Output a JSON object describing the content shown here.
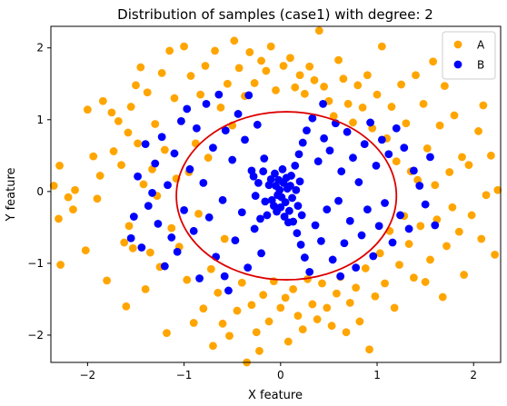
{
  "chart_data": {
    "type": "scatter",
    "title": "Distribution of samples (case1) with degree: 2",
    "xlabel": "X feature",
    "ylabel": "Y feature",
    "xlim": [
      -2.38,
      2.28
    ],
    "ylim": [
      -2.38,
      2.3
    ],
    "xticks": [
      -2,
      -1,
      0,
      1,
      2
    ],
    "xtick_labels": [
      "−2",
      "−1",
      "0",
      "1",
      "2"
    ],
    "yticks": [
      -2,
      -1,
      0,
      1,
      2
    ],
    "ytick_labels": [
      "−2",
      "−1",
      "0",
      "1",
      "2"
    ],
    "grid": false,
    "legend": "top-right",
    "series": [
      {
        "name": "A",
        "color": "#ffa500",
        "points": [
          [
            -2.35,
            0.08
          ],
          [
            -2.3,
            -0.38
          ],
          [
            -2.29,
            0.36
          ],
          [
            -2.28,
            -1.02
          ],
          [
            -2.2,
            -0.08
          ],
          [
            -2.15,
            -0.25
          ],
          [
            -2.13,
            0.02
          ],
          [
            -2.02,
            -0.82
          ],
          [
            -2.0,
            1.14
          ],
          [
            -1.94,
            0.49
          ],
          [
            -1.9,
            -0.1
          ],
          [
            -1.87,
            0.22
          ],
          [
            -1.84,
            1.26
          ],
          [
            -1.8,
            -1.24
          ],
          [
            -1.75,
            1.1
          ],
          [
            -1.73,
            0.56
          ],
          [
            -1.68,
            0.98
          ],
          [
            -1.65,
            0.37
          ],
          [
            -1.62,
            -0.71
          ],
          [
            -1.6,
            -1.6
          ],
          [
            -1.58,
            0.82
          ],
          [
            -1.57,
            -0.48
          ],
          [
            -1.55,
            1.18
          ],
          [
            -1.53,
            -0.79
          ],
          [
            -1.5,
            1.48
          ],
          [
            -1.48,
            0.67
          ],
          [
            -1.45,
            1.73
          ],
          [
            -1.42,
            0.1
          ],
          [
            -1.4,
            -1.36
          ],
          [
            -1.38,
            1.38
          ],
          [
            -1.35,
            -0.85
          ],
          [
            -1.33,
            0.31
          ],
          [
            -1.3,
            0.94
          ],
          [
            -1.28,
            -0.06
          ],
          [
            -1.25,
            -1.05
          ],
          [
            -1.23,
            1.65
          ],
          [
            -1.2,
            0.58
          ],
          [
            -1.18,
            -1.97
          ],
          [
            -1.15,
            1.96
          ],
          [
            -1.13,
            -0.51
          ],
          [
            -1.1,
            1.3
          ],
          [
            -1.08,
            0.18
          ],
          [
            -1.05,
            -0.77
          ],
          [
            -1.03,
            0.98
          ],
          [
            -1.0,
            2.02
          ],
          [
            -0.97,
            -1.23
          ],
          [
            -0.95,
            0.27
          ],
          [
            -0.93,
            1.61
          ],
          [
            -0.9,
            -1.83
          ],
          [
            -0.88,
            0.67
          ],
          [
            -0.85,
            -0.31
          ],
          [
            -0.83,
            1.35
          ],
          [
            -0.8,
            -1.63
          ],
          [
            -0.78,
            1.75
          ],
          [
            -0.75,
            0.47
          ],
          [
            -0.72,
            -1.08
          ],
          [
            -0.7,
            -2.15
          ],
          [
            -0.68,
            1.96
          ],
          [
            -0.65,
            -1.41
          ],
          [
            -0.62,
            1.17
          ],
          [
            -0.6,
            -1.84
          ],
          [
            -0.58,
            -0.66
          ],
          [
            -0.55,
            1.5
          ],
          [
            -0.53,
            -2.01
          ],
          [
            -0.5,
            0.92
          ],
          [
            -0.48,
            2.1
          ],
          [
            -0.45,
            -1.66
          ],
          [
            -0.43,
            1.72
          ],
          [
            -0.4,
            -1.27
          ],
          [
            -0.37,
            1.33
          ],
          [
            -0.35,
            -2.38
          ],
          [
            -0.32,
            1.94
          ],
          [
            -0.3,
            -1.58
          ],
          [
            -0.27,
            1.51
          ],
          [
            -0.25,
            -1.96
          ],
          [
            -0.22,
            -2.22
          ],
          [
            -0.2,
            1.82
          ],
          [
            -0.18,
            -1.44
          ],
          [
            -0.15,
            1.68
          ],
          [
            -0.12,
            -1.81
          ],
          [
            -0.1,
            2.02
          ],
          [
            -0.07,
            -1.25
          ],
          [
            -0.05,
            1.41
          ],
          [
            0.0,
            -1.62
          ],
          [
            0.03,
            1.75
          ],
          [
            0.05,
            -1.48
          ],
          [
            0.08,
            -2.09
          ],
          [
            0.1,
            1.86
          ],
          [
            0.13,
            -1.36
          ],
          [
            0.15,
            1.45
          ],
          [
            0.18,
            -1.73
          ],
          [
            0.2,
            1.62
          ],
          [
            0.23,
            -1.92
          ],
          [
            0.25,
            1.36
          ],
          [
            0.28,
            -1.22
          ],
          [
            0.3,
            1.74
          ],
          [
            0.33,
            -1.57
          ],
          [
            0.35,
            1.55
          ],
          [
            0.38,
            -1.78
          ],
          [
            0.4,
            2.24
          ],
          [
            0.43,
            -1.28
          ],
          [
            0.45,
            1.46
          ],
          [
            0.48,
            -1.62
          ],
          [
            0.5,
            1.26
          ],
          [
            0.53,
            -1.87
          ],
          [
            0.55,
            1.05
          ],
          [
            0.58,
            -1.42
          ],
          [
            0.6,
            1.83
          ],
          [
            0.62,
            -1.19
          ],
          [
            0.65,
            1.57
          ],
          [
            0.68,
            -1.96
          ],
          [
            0.7,
            1.22
          ],
          [
            0.72,
            -1.55
          ],
          [
            0.75,
            0.96
          ],
          [
            0.78,
            -1.34
          ],
          [
            0.8,
            1.48
          ],
          [
            0.82,
            -1.81
          ],
          [
            0.85,
            1.17
          ],
          [
            0.88,
            -1.07
          ],
          [
            0.9,
            1.62
          ],
          [
            0.92,
            -2.2
          ],
          [
            0.95,
            0.88
          ],
          [
            0.98,
            -1.46
          ],
          [
            1.0,
            1.35
          ],
          [
            1.03,
            -0.86
          ],
          [
            1.05,
            2.02
          ],
          [
            1.08,
            -1.28
          ],
          [
            1.1,
            0.74
          ],
          [
            1.13,
            -0.55
          ],
          [
            1.15,
            1.18
          ],
          [
            1.18,
            -1.62
          ],
          [
            1.2,
            0.42
          ],
          [
            1.23,
            -1.02
          ],
          [
            1.25,
            1.49
          ],
          [
            1.28,
            -0.34
          ],
          [
            1.3,
            0.95
          ],
          [
            1.33,
            -0.73
          ],
          [
            1.35,
            0.28
          ],
          [
            1.38,
            -1.2
          ],
          [
            1.4,
            1.62
          ],
          [
            1.42,
            0.16
          ],
          [
            1.45,
            -0.48
          ],
          [
            1.48,
            1.22
          ],
          [
            1.5,
            -1.26
          ],
          [
            1.52,
            0.6
          ],
          [
            1.55,
            -0.95
          ],
          [
            1.58,
            1.81
          ],
          [
            1.6,
            0.09
          ],
          [
            1.62,
            -0.39
          ],
          [
            1.65,
            0.92
          ],
          [
            1.68,
            -1.47
          ],
          [
            1.7,
            1.47
          ],
          [
            1.72,
            -0.76
          ],
          [
            1.75,
            0.27
          ],
          [
            1.78,
            -0.22
          ],
          [
            1.8,
            1.06
          ],
          [
            1.85,
            -0.56
          ],
          [
            1.88,
            0.48
          ],
          [
            1.9,
            -1.16
          ],
          [
            1.95,
            0.37
          ],
          [
            1.98,
            -0.33
          ],
          [
            2.05,
            0.84
          ],
          [
            2.08,
            -0.66
          ],
          [
            2.1,
            1.2
          ],
          [
            2.13,
            -0.05
          ],
          [
            2.18,
            0.5
          ],
          [
            2.22,
            -0.88
          ],
          [
            2.25,
            0.02
          ]
        ]
      },
      {
        "name": "B",
        "color": "#0000ff",
        "points": [
          [
            -1.55,
            -0.65
          ],
          [
            -1.52,
            -0.35
          ],
          [
            -1.48,
            0.21
          ],
          [
            -1.44,
            -0.78
          ],
          [
            -1.4,
            0.66
          ],
          [
            -1.37,
            -0.2
          ],
          [
            -1.33,
            -0.02
          ],
          [
            -1.3,
            0.39
          ],
          [
            -1.27,
            -0.45
          ],
          [
            -1.23,
            0.76
          ],
          [
            -1.2,
            -1.04
          ],
          [
            -1.17,
            0.09
          ],
          [
            -1.13,
            -0.64
          ],
          [
            -1.1,
            0.53
          ],
          [
            -1.07,
            -0.84
          ],
          [
            -1.03,
            0.98
          ],
          [
            -1.0,
            -0.26
          ],
          [
            -0.97,
            1.15
          ],
          [
            -0.94,
            0.31
          ],
          [
            -0.9,
            -0.55
          ],
          [
            -0.87,
            0.88
          ],
          [
            -0.84,
            -1.21
          ],
          [
            -0.8,
            0.12
          ],
          [
            -0.77,
            1.22
          ],
          [
            -0.74,
            -0.36
          ],
          [
            -0.7,
            0.61
          ],
          [
            -0.67,
            -0.91
          ],
          [
            -0.64,
            1.35
          ],
          [
            -0.6,
            -0.12
          ],
          [
            -0.57,
            0.85
          ],
          [
            -0.54,
            -1.38
          ],
          [
            -0.5,
            0.44
          ],
          [
            -0.47,
            -0.68
          ],
          [
            -0.44,
            1.08
          ],
          [
            -0.4,
            -0.29
          ],
          [
            -0.37,
            0.72
          ],
          [
            -0.34,
            -1.06
          ],
          [
            -0.3,
            0.29
          ],
          [
            -0.27,
            -0.52
          ],
          [
            -0.24,
            0.93
          ],
          [
            -0.2,
            -0.86
          ],
          [
            -0.17,
            0.46
          ],
          [
            -0.14,
            -0.33
          ],
          [
            -0.1,
            0.17
          ],
          [
            -0.07,
            -0.2
          ],
          [
            -0.05,
            0.08
          ],
          [
            -0.03,
            -0.05
          ],
          [
            -0.01,
            0.02
          ],
          [
            0.01,
            -0.08
          ],
          [
            0.03,
            0.12
          ],
          [
            0.05,
            -0.15
          ],
          [
            0.07,
            0.04
          ],
          [
            0.09,
            -0.27
          ],
          [
            0.11,
            0.22
          ],
          [
            0.13,
            -0.42
          ],
          [
            0.15,
            0.36
          ],
          [
            0.17,
            -0.58
          ],
          [
            0.19,
            0.52
          ],
          [
            0.21,
            -0.74
          ],
          [
            0.23,
            0.68
          ],
          [
            0.25,
            -0.92
          ],
          [
            0.27,
            0.85
          ],
          [
            0.3,
            -1.12
          ],
          [
            0.33,
            1.02
          ],
          [
            0.36,
            -0.47
          ],
          [
            0.39,
            0.42
          ],
          [
            0.42,
            -0.69
          ],
          [
            0.45,
            0.74
          ],
          [
            0.48,
            -0.25
          ],
          [
            0.51,
            0.57
          ],
          [
            0.54,
            -0.95
          ],
          [
            0.57,
            0.95
          ],
          [
            0.6,
            -0.13
          ],
          [
            0.63,
            0.28
          ],
          [
            0.66,
            -0.72
          ],
          [
            0.69,
            0.83
          ],
          [
            0.72,
            -0.41
          ],
          [
            0.75,
            0.47
          ],
          [
            0.78,
            -1.06
          ],
          [
            0.81,
            0.13
          ],
          [
            0.84,
            -0.61
          ],
          [
            0.87,
            0.66
          ],
          [
            0.9,
            -0.25
          ],
          [
            0.93,
            0.96
          ],
          [
            0.96,
            -0.9
          ],
          [
            0.99,
            0.36
          ],
          [
            1.02,
            -0.48
          ],
          [
            1.05,
            0.72
          ],
          [
            1.08,
            -0.16
          ],
          [
            1.12,
            0.52
          ],
          [
            1.16,
            -0.71
          ],
          [
            1.2,
            0.88
          ],
          [
            1.24,
            -0.33
          ],
          [
            1.28,
            0.61
          ],
          [
            1.33,
            -0.52
          ],
          [
            1.38,
            0.29
          ],
          [
            1.44,
            0.08
          ],
          [
            1.5,
            -0.18
          ],
          [
            1.55,
            0.48
          ],
          [
            1.6,
            -0.47
          ],
          [
            -0.12,
            0.09
          ],
          [
            -0.09,
            -0.12
          ],
          [
            -0.06,
            0.25
          ],
          [
            -0.04,
            -0.28
          ],
          [
            -0.02,
            0.16
          ],
          [
            0.0,
            -0.22
          ],
          [
            0.02,
            0.31
          ],
          [
            0.04,
            -0.35
          ],
          [
            0.06,
            0.19
          ],
          [
            0.08,
            -0.43
          ],
          [
            0.1,
            0.08
          ],
          [
            0.12,
            -0.09
          ],
          [
            -0.16,
            -0.14
          ],
          [
            -0.18,
            0.28
          ],
          [
            -0.21,
            -0.38
          ],
          [
            -0.23,
            0.12
          ],
          [
            -0.26,
            -0.06
          ],
          [
            -0.28,
            0.21
          ],
          [
            0.16,
            0.02
          ],
          [
            0.18,
            -0.2
          ],
          [
            0.2,
            0.14
          ],
          [
            0.22,
            -0.33
          ],
          [
            -0.33,
            1.34
          ],
          [
            0.44,
            1.22
          ],
          [
            -0.58,
            -1.18
          ],
          [
            0.62,
            -1.18
          ]
        ]
      }
    ],
    "curves": [
      {
        "type": "ellipse",
        "color": "#dd0000",
        "center": [
          0.06,
          -0.06
        ],
        "rx": 1.14,
        "ry": 1.17
      }
    ]
  }
}
